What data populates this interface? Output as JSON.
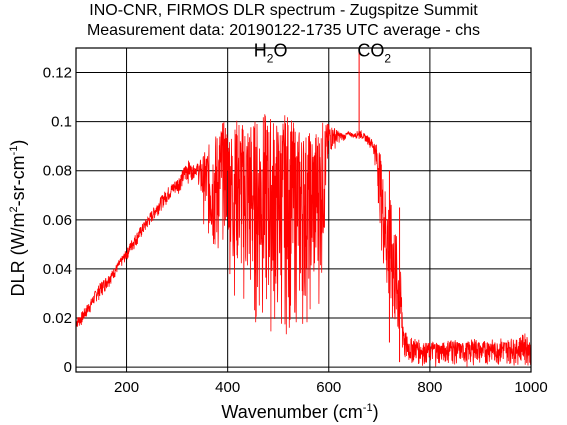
{
  "chart_data": {
    "type": "line",
    "title": "INO-CNR, FIRMOS DLR spectrum - Zugspitze Summit",
    "subtitle": "Measurement data: 20190122-1735 UTC average - chs",
    "xlabel": {
      "main": "Wavenumber (cm",
      "sup": "-1",
      "tail": ")"
    },
    "ylabel": {
      "a": "DLR (W/m",
      "sup1": "2",
      "b": "-sr-cm",
      "sup2": "-1",
      "c": ")"
    },
    "xlim": [
      100,
      1000
    ],
    "ylim": [
      -0.002,
      0.13
    ],
    "xticks": [
      200,
      400,
      600,
      800,
      1000
    ],
    "xtick_labels": [
      "200",
      "400",
      "600",
      "800",
      "1000"
    ],
    "yticks": [
      0,
      0.02,
      0.04,
      0.06,
      0.08,
      0.1,
      0.12
    ],
    "ytick_labels": [
      "0",
      "0.02",
      "0.04",
      "0.06",
      "0.08",
      "0.1",
      "0.12"
    ],
    "grid": true,
    "annotations": [
      {
        "main": "H",
        "sub": "2",
        "tail": "O",
        "x": 485,
        "y": 0.1265
      },
      {
        "main": "CO",
        "sub": "2",
        "tail": "",
        "x": 690,
        "y": 0.1265
      }
    ],
    "series_color": "#ff0000",
    "series": [
      {
        "step": 10,
        "x": [
          100,
          110,
          120,
          130,
          140,
          150,
          160,
          170,
          180,
          190,
          200,
          210,
          220,
          230,
          240,
          250,
          260,
          270,
          280,
          290,
          300,
          310,
          320,
          330,
          340,
          350,
          360,
          370,
          380,
          390,
          400,
          410,
          420,
          430,
          440,
          450,
          460,
          470,
          480,
          490,
          500,
          510,
          520,
          530,
          540,
          550,
          560,
          570,
          580,
          590,
          600,
          610,
          620,
          630,
          640,
          650,
          660,
          670,
          680,
          690,
          700,
          710,
          720,
          730,
          740,
          750,
          760,
          770,
          780,
          790,
          800,
          810,
          820,
          830,
          840,
          850,
          860,
          870,
          880,
          890,
          900,
          910,
          920,
          930,
          940,
          950,
          960,
          970,
          980,
          990,
          1000
        ],
        "upper": [
          0.02,
          0.022,
          0.025,
          0.028,
          0.032,
          0.035,
          0.037,
          0.039,
          0.042,
          0.045,
          0.048,
          0.052,
          0.055,
          0.058,
          0.061,
          0.064,
          0.067,
          0.07,
          0.073,
          0.075,
          0.077,
          0.08,
          0.085,
          0.082,
          0.083,
          0.086,
          0.09,
          0.093,
          0.097,
          0.1,
          0.1,
          0.096,
          0.103,
          0.1,
          0.103,
          0.101,
          0.102,
          0.104,
          0.103,
          0.103,
          0.1,
          0.103,
          0.104,
          0.1,
          0.098,
          0.097,
          0.096,
          0.097,
          0.099,
          0.101,
          0.099,
          0.098,
          0.096,
          0.095,
          0.096,
          0.095,
          0.097,
          0.095,
          0.094,
          0.092,
          0.09,
          0.075,
          0.07,
          0.06,
          0.045,
          0.015,
          0.012,
          0.012,
          0.011,
          0.01,
          0.01,
          0.011,
          0.01,
          0.01,
          0.012,
          0.011,
          0.01,
          0.01,
          0.011,
          0.012,
          0.01,
          0.011,
          0.012,
          0.01,
          0.012,
          0.011,
          0.012,
          0.011,
          0.013,
          0.014,
          0.01
        ],
        "lower": [
          0.015,
          0.016,
          0.019,
          0.022,
          0.026,
          0.028,
          0.031,
          0.034,
          0.037,
          0.04,
          0.043,
          0.046,
          0.049,
          0.052,
          0.055,
          0.058,
          0.061,
          0.064,
          0.066,
          0.068,
          0.07,
          0.072,
          0.074,
          0.076,
          0.078,
          0.06,
          0.05,
          0.04,
          0.035,
          0.05,
          0.045,
          0.025,
          0.03,
          0.02,
          0.015,
          0.012,
          0.01,
          0.012,
          0.01,
          0.009,
          0.008,
          0.01,
          0.009,
          0.012,
          0.01,
          0.012,
          0.015,
          0.018,
          0.02,
          0.04,
          0.085,
          0.088,
          0.091,
          0.092,
          0.094,
          0.093,
          0.093,
          0.092,
          0.09,
          0.085,
          0.06,
          0.03,
          0.01,
          0.005,
          0.002,
          0.0,
          0.0,
          0.001,
          0.0,
          0.0,
          0.001,
          0.0,
          0.0,
          0.001,
          0.0,
          0.0,
          0.001,
          0.0,
          0.0,
          0.001,
          0.0,
          0.0,
          0.001,
          0.0,
          0.0,
          0.0,
          0.001,
          0.0,
          0.001,
          0.0,
          0.0
        ],
        "spikes": [
          {
            "x": 660,
            "y": 0.13
          },
          {
            "x": 720,
            "y": 0.08
          },
          {
            "x": 740,
            "y": 0.065
          }
        ]
      }
    ]
  }
}
